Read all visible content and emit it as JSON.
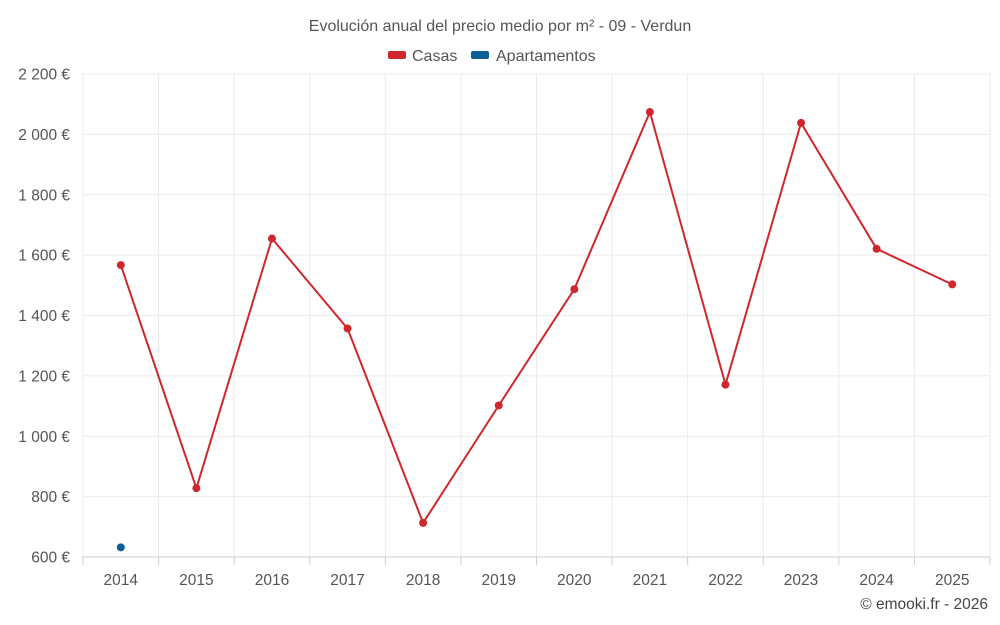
{
  "chart_data": {
    "type": "line",
    "title": "Evolución anual del precio medio por m² - 09 - Verdun",
    "xlabel": "",
    "ylabel": "",
    "x": [
      "2014",
      "2015",
      "2016",
      "2017",
      "2018",
      "2019",
      "2020",
      "2021",
      "2022",
      "2023",
      "2024",
      "2025"
    ],
    "ylim": [
      600,
      2200
    ],
    "yticks": [
      600,
      800,
      1000,
      1200,
      1400,
      1600,
      1800,
      2000,
      2200
    ],
    "ytick_labels": [
      "600 €",
      "800 €",
      "1 000 €",
      "1 200 €",
      "1 400 €",
      "1 600 €",
      "1 800 €",
      "2 000 €",
      "2 200 €"
    ],
    "grid": true,
    "legend_position": "top",
    "series": [
      {
        "name": "Casas",
        "color": "#d0272e",
        "values": [
          1567,
          828,
          1655,
          1357,
          713,
          1102,
          1487,
          2074,
          1171,
          2038,
          1621,
          1503
        ]
      },
      {
        "name": "Apartamentos",
        "color": "#0b5e96",
        "values": [
          632,
          null,
          null,
          null,
          null,
          null,
          null,
          null,
          null,
          null,
          null,
          null
        ]
      }
    ]
  },
  "credit": "© emooki.fr - 2026"
}
